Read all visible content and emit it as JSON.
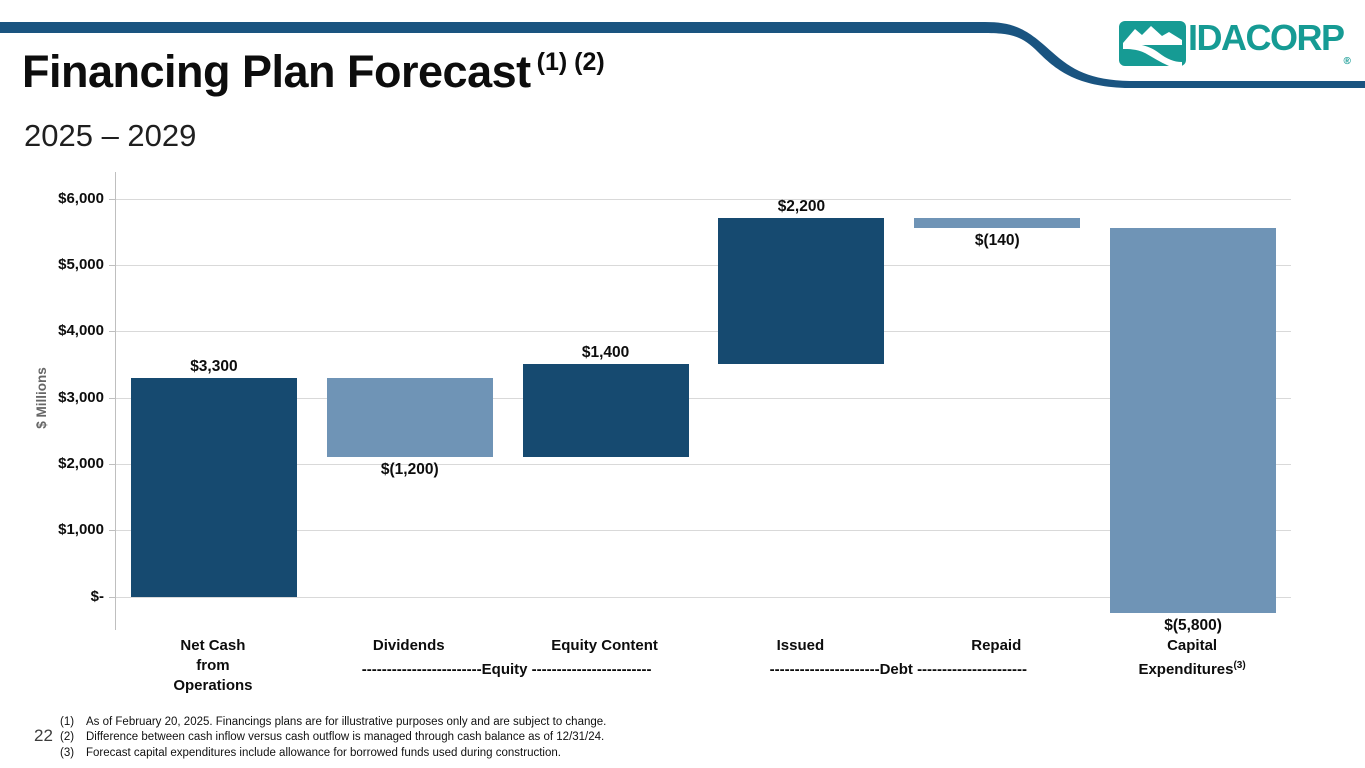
{
  "header": {
    "title": "Financing Plan Forecast",
    "title_superscript": "(1) (2)",
    "subtitle": "2025 – 2029",
    "logo_text": "IDACORP",
    "logo_registered_mark": "®",
    "banner_color": "#1A5480",
    "logo_color": "#169B94"
  },
  "chart_data": {
    "type": "bar",
    "subtype": "waterfall",
    "ylabel": "$ Millions",
    "ylim": [
      -500,
      6400
    ],
    "grid": true,
    "legend": "none",
    "yticks": [
      {
        "value": 6000,
        "label": "$6,000"
      },
      {
        "value": 5000,
        "label": "$5,000"
      },
      {
        "value": 4000,
        "label": "$4,000"
      },
      {
        "value": 3000,
        "label": "$3,000"
      },
      {
        "value": 2000,
        "label": "$2,000"
      },
      {
        "value": 1000,
        "label": "$1,000"
      },
      {
        "value": 0,
        "label": "$-"
      }
    ],
    "categories": [
      {
        "label": "Net Cash\nfrom\nOperations",
        "value": 3300,
        "display": "$3,300",
        "start": 0,
        "end": 3300,
        "color": "dark",
        "label_position": "above"
      },
      {
        "label": "Dividends",
        "value": -1200,
        "display": "$(1,200)",
        "start": 3300,
        "end": 2100,
        "color": "light",
        "label_position": "below"
      },
      {
        "label": "Equity Content",
        "value": 1400,
        "display": "$1,400",
        "start": 2100,
        "end": 3500,
        "color": "dark",
        "label_position": "above"
      },
      {
        "label": "Issued",
        "value": 2200,
        "display": "$2,200",
        "start": 3500,
        "end": 5700,
        "color": "dark",
        "label_position": "above"
      },
      {
        "label": "Repaid",
        "value": -140,
        "display": "$(140)",
        "start": 5700,
        "end": 5560,
        "color": "light",
        "label_position": "below"
      },
      {
        "label": "Capital\nExpenditures",
        "label_sup": "(3)",
        "value": -5800,
        "display": "$(5,800)",
        "start": 5560,
        "end": -240,
        "color": "light",
        "label_position": "below"
      }
    ],
    "groups": [
      {
        "text": "------------------------Equity ------------------------",
        "span": [
          1,
          2
        ]
      },
      {
        "text": "----------------------Debt ----------------------",
        "span": [
          3,
          4
        ]
      }
    ],
    "colors": {
      "dark": "#164A70",
      "light": "#6F94B6",
      "gridline": "#D9D9D9",
      "axis": "#BFBFBF"
    }
  },
  "footnotes": [
    {
      "num": "(1)",
      "text": "As of February 20, 2025. Financings plans are for illustrative purposes only and are subject to change."
    },
    {
      "num": "(2)",
      "text": "Difference between cash inflow versus cash outflow is managed through cash balance as of 12/31/24."
    },
    {
      "num": "(3)",
      "text": "Forecast capital expenditures include allowance for borrowed funds used during construction."
    }
  ],
  "page_number": "22"
}
